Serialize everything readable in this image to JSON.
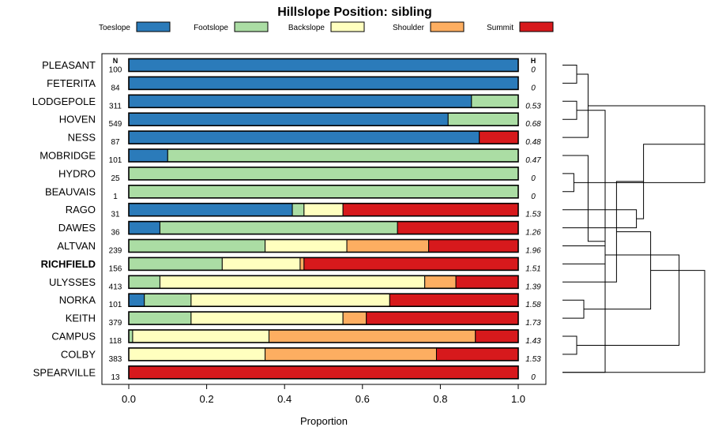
{
  "chart_data": {
    "type": "bar",
    "orientation": "horizontal",
    "stacked": true,
    "title": "Hillslope Position: sibling",
    "xlabel": "Proportion",
    "ylabel": "",
    "xlim": [
      0,
      1
    ],
    "xticks": [
      "0.0",
      "0.2",
      "0.4",
      "0.6",
      "0.8",
      "1.0"
    ],
    "n_header": "N",
    "h_header": "H",
    "legend": [
      {
        "name": "Toeslope",
        "color": "#2b7bba"
      },
      {
        "name": "Footslope",
        "color": "#abdda4"
      },
      {
        "name": "Backslope",
        "color": "#ffffbf"
      },
      {
        "name": "Shoulder",
        "color": "#fdae61"
      },
      {
        "name": "Summit",
        "color": "#d7191c"
      }
    ],
    "categories": [
      "PLEASANT",
      "FETERITA",
      "LODGEPOLE",
      "HOVEN",
      "NESS",
      "MOBRIDGE",
      "HYDRO",
      "BEAUVAIS",
      "RAGO",
      "DAWES",
      "ALTVAN",
      "RICHFIELD",
      "ULYSSES",
      "NORKA",
      "KEITH",
      "CAMPUS",
      "COLBY",
      "SPEARVILLE"
    ],
    "highlighted": "RICHFIELD",
    "n": [
      "100",
      "84",
      "311",
      "549",
      "87",
      "101",
      "25",
      "1",
      "31",
      "36",
      "239",
      "156",
      "413",
      "101",
      "379",
      "118",
      "383",
      "13"
    ],
    "h": [
      "0",
      "0",
      "0.53",
      "0.68",
      "0.48",
      "0.47",
      "0",
      "0",
      "1.53",
      "1.26",
      "1.96",
      "1.51",
      "1.39",
      "1.58",
      "1.73",
      "1.43",
      "1.53",
      "0"
    ],
    "series": [
      {
        "name": "Toeslope",
        "values": [
          1.0,
          1.0,
          0.88,
          0.82,
          0.9,
          0.1,
          0,
          0,
          0.42,
          0.08,
          0,
          0,
          0,
          0.04,
          0,
          0,
          0,
          0
        ]
      },
      {
        "name": "Footslope",
        "values": [
          0,
          0,
          0.12,
          0.18,
          0,
          0.9,
          1.0,
          1.0,
          0.03,
          0.61,
          0.35,
          0.24,
          0.08,
          0.12,
          0.16,
          0.01,
          0,
          0
        ]
      },
      {
        "name": "Backslope",
        "values": [
          0,
          0,
          0,
          0,
          0,
          0,
          0,
          0,
          0.1,
          0,
          0.21,
          0.2,
          0.68,
          0.51,
          0.39,
          0.35,
          0.35,
          0
        ]
      },
      {
        "name": "Shoulder",
        "values": [
          0,
          0,
          0,
          0,
          0,
          0,
          0,
          0,
          0,
          0,
          0.21,
          0.01,
          0.08,
          0,
          0.06,
          0.53,
          0.44,
          0
        ]
      },
      {
        "name": "Summit",
        "values": [
          0,
          0,
          0,
          0,
          0.1,
          0,
          0,
          0,
          0.45,
          0.31,
          0.23,
          0.55,
          0.16,
          0.33,
          0.39,
          0.11,
          0.21,
          1.0
        ]
      }
    ],
    "dendrogram_merges": [
      [
        0,
        1,
        0.1
      ],
      [
        2,
        3,
        0.1
      ],
      [
        18,
        4,
        0.18
      ],
      [
        17,
        19,
        0.3
      ],
      [
        6,
        7,
        0.08
      ],
      [
        5,
        21,
        0.18
      ],
      [
        20,
        22,
        1.0
      ],
      [
        8,
        9,
        0.52
      ],
      [
        10,
        11,
        0.3
      ],
      [
        24,
        25,
        0.57
      ],
      [
        14,
        13,
        0.15
      ],
      [
        12,
        27,
        0.38
      ],
      [
        15,
        16,
        0.1
      ],
      [
        28,
        29,
        0.62
      ],
      [
        26,
        30,
        0.82
      ],
      [
        31,
        17,
        1.0
      ]
    ]
  }
}
